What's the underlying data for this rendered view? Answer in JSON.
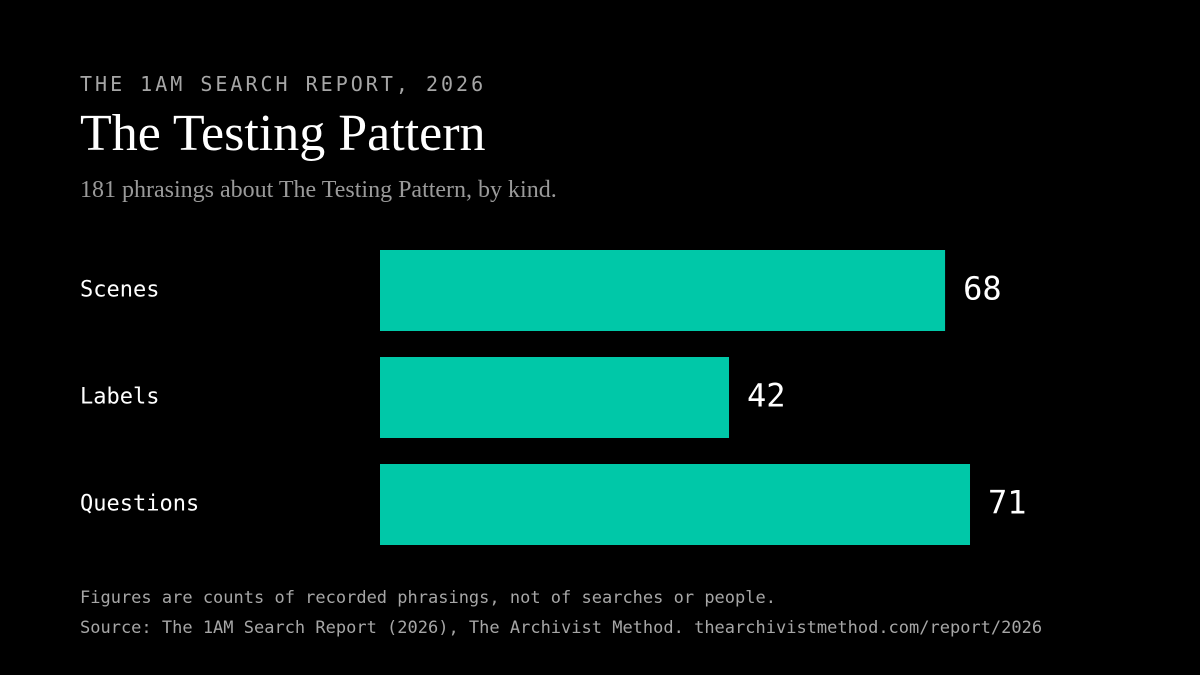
{
  "header": {
    "kicker": "THE 1AM SEARCH REPORT, 2026",
    "title": "The Testing Pattern",
    "subtitle": "181 phrasings about The Testing Pattern, by kind."
  },
  "chart_data": {
    "type": "bar",
    "orientation": "horizontal",
    "categories": [
      "Scenes",
      "Labels",
      "Questions"
    ],
    "values": [
      68,
      42,
      71
    ],
    "bar_color": "#00c8a8",
    "data_labels": true,
    "grid": false
  },
  "footer": {
    "note": "Figures are counts of recorded phrasings, not of searches or people.",
    "source": "Source: The 1AM Search Report (2026), The Archivist Method. thearchivistmethod.com/report/2026"
  }
}
